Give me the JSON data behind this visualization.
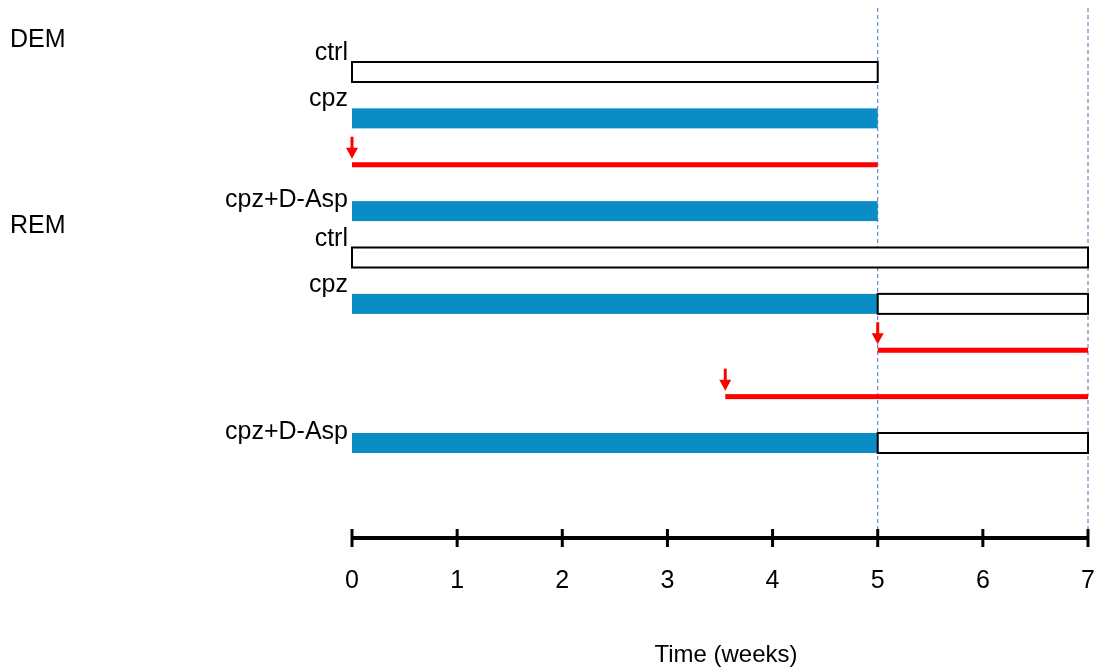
{
  "chart_data": {
    "type": "bar",
    "orientation": "horizontal",
    "xlabel": "Time (weeks)",
    "categories": [
      "ctrl",
      "cpz",
      null,
      "cpz+D-Asp",
      "ctrl",
      "cpz",
      null,
      null,
      "cpz+D-Asp"
    ],
    "series": [
      {
        "color": "#0a8cc4",
        "base": [
          null,
          0,
          null,
          0,
          null,
          0,
          null,
          null,
          0
        ],
        "values": [
          null,
          5,
          null,
          5,
          null,
          5,
          null,
          null,
          5
        ]
      },
      {
        "color": "#ffffff",
        "base": [
          0,
          null,
          null,
          null,
          0,
          5,
          null,
          null,
          5
        ],
        "values": [
          5,
          null,
          null,
          null,
          7,
          2,
          null,
          null,
          2
        ]
      },
      {
        "color": "#ff0000",
        "base": [
          null,
          null,
          0,
          null,
          null,
          null,
          5,
          3.55,
          null
        ],
        "values": [
          null,
          null,
          5,
          null,
          null,
          null,
          2,
          3.45,
          null
        ]
      }
    ],
    "xlim": [
      0,
      7
    ],
    "xticks": [
      0,
      1,
      2,
      3,
      4,
      5,
      6,
      7
    ],
    "ref_lines": [
      {
        "axis": "x",
        "value": 5,
        "color": "#4472c4",
        "line_style": "dashed"
      },
      {
        "axis": "x",
        "value": 7,
        "color": "#4472c4",
        "line_style": "dashed"
      }
    ],
    "annotations": [
      "DEM",
      "REM"
    ],
    "grid": false
  }
}
